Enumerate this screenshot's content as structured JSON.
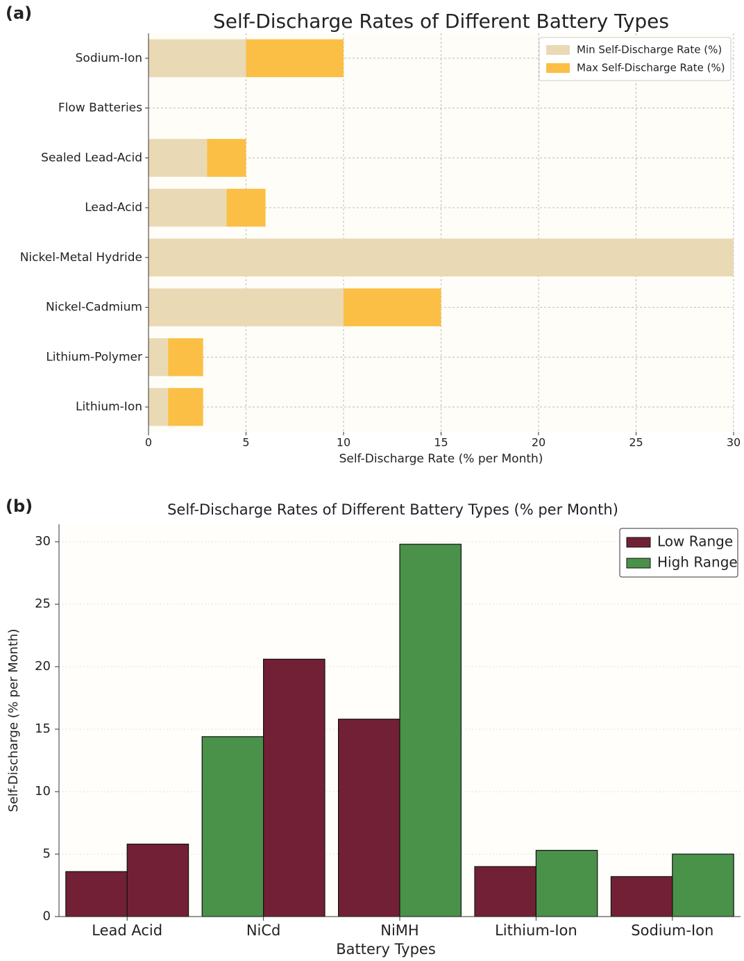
{
  "chart_data": [
    {
      "type": "bar",
      "orientation": "horizontal",
      "stacked": true,
      "panel_label": "(a)",
      "title": "Self-Discharge Rates of Different Battery Types",
      "x_label": "Self-Discharge Rate (% per Month)",
      "categories": [
        "Lithium-Ion",
        "Lithium-Polymer",
        "Nickel-Cadmium",
        "Nickel-Metal Hydride",
        "Lead-Acid",
        "Sealed Lead-Acid",
        "Flow Batteries",
        "Sodium-Ion"
      ],
      "series": [
        {
          "name": "Min Self-Discharge Rate (%)",
          "color": "#ead9b5",
          "values": [
            1,
            1,
            10,
            30,
            4,
            3,
            null,
            5
          ]
        },
        {
          "name": "Max Self-Discharge Rate (%)",
          "color": "#fbbf45",
          "values": [
            1.8,
            1.8,
            5,
            null,
            2,
            2,
            null,
            5
          ]
        }
      ],
      "xlim": [
        0,
        30
      ],
      "xticks": [
        0,
        5,
        10,
        15,
        20,
        25,
        30
      ],
      "grid": true,
      "legend": "upper right"
    },
    {
      "type": "bar",
      "orientation": "vertical",
      "stacked": false,
      "panel_label": "(b)",
      "title": "Self-Discharge Rates of Different Battery Types (% per Month)",
      "x_label": "Battery Types",
      "y_label": "Self-Discharge (% per Month)",
      "categories": [
        "Lead Acid",
        "NiCd",
        "NiMH",
        "Lithium-Ion",
        "Sodium-Ion"
      ],
      "series": [
        {
          "name": "Low Range",
          "color": "#722036",
          "colors": [
            "#722036",
            "#4a914a",
            "#722036",
            "#722036",
            "#722036"
          ],
          "values": [
            3.6,
            14.4,
            15.8,
            4,
            3.2
          ]
        },
        {
          "name": "High Range",
          "color": "#4a914a",
          "colors": [
            "#722036",
            "#722036",
            "#4a914a",
            "#4a914a",
            "#4a914a"
          ],
          "values": [
            5.8,
            20.6,
            29.8,
            5.3,
            5
          ]
        }
      ],
      "ylim": [
        0,
        31.4
      ],
      "yticks": [
        0,
        5,
        10,
        15,
        20,
        25,
        30
      ],
      "grid": true,
      "legend": "upper right"
    }
  ]
}
